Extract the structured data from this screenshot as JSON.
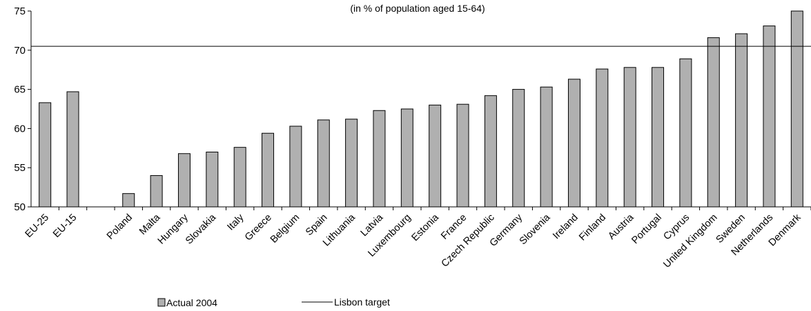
{
  "chart_data": {
    "type": "bar",
    "subtitle": "(in % of population aged 15-64)",
    "categories": [
      "EU-25",
      "EU-15",
      "",
      "Poland",
      "Malta",
      "Hungary",
      "Slovakia",
      "Italy",
      "Greece",
      "Belgium",
      "Spain",
      "Lithuania",
      "Latvia",
      "Luxembourg",
      "Estonia",
      "France",
      "Czech Republic",
      "Germany",
      "Slovenia",
      "Ireland",
      "Finland",
      "Austria",
      "Portugal",
      "Cyprus",
      "United Kingdom",
      "Sweden",
      "Netherlands",
      "Denmark"
    ],
    "series": [
      {
        "name": "Actual 2004",
        "values": [
          63.3,
          64.7,
          null,
          51.7,
          54.0,
          56.8,
          57.0,
          57.6,
          59.4,
          60.3,
          61.1,
          61.2,
          62.3,
          62.5,
          63.0,
          63.1,
          64.2,
          65.0,
          65.3,
          66.3,
          67.6,
          67.8,
          67.8,
          68.9,
          71.6,
          72.1,
          73.1,
          75.7
        ],
        "color": "#b0b0b0"
      }
    ],
    "reference_line": {
      "name": "Lisbon target",
      "value": 70.5,
      "color": "#000000"
    },
    "ylim": [
      50,
      75
    ],
    "yticks": [
      "50",
      "55",
      "60",
      "65",
      "70",
      "75"
    ],
    "grid": false,
    "legend": "bottom"
  }
}
